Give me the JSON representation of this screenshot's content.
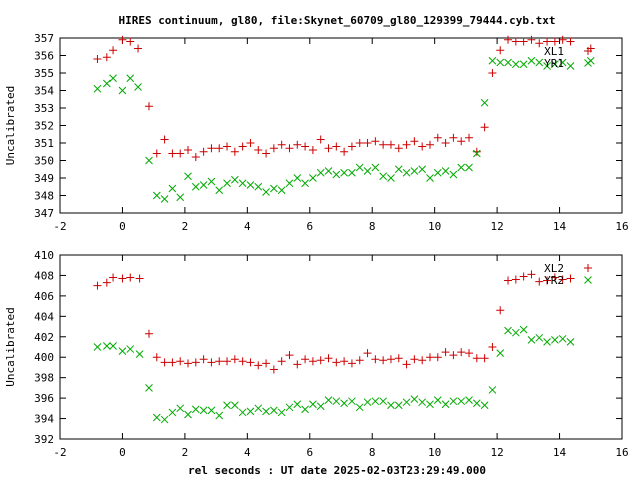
{
  "title": "HIRES continuum, gl80, file:Skynet_60709_gl80_129399_79444.cyb.txt",
  "xlabel": "rel seconds : UT date 2025-02-03T23:29:49.000",
  "colors": {
    "series_a": "#cc0000",
    "series_b": "#00aa00",
    "axes": "#000000"
  },
  "chart_data": [
    {
      "type": "scatter",
      "ylabel": "Uncalibrated",
      "xlim": [
        -2,
        16
      ],
      "ylim": [
        347,
        357
      ],
      "xticks": [
        -2,
        0,
        2,
        4,
        6,
        8,
        10,
        12,
        14,
        16
      ],
      "yticks": [
        347,
        348,
        349,
        350,
        351,
        352,
        353,
        354,
        355,
        356,
        357
      ],
      "legend_position": "top-right",
      "series": [
        {
          "name": "XL1",
          "marker": "plus",
          "x": [
            -0.8,
            -0.5,
            -0.3,
            0.0,
            0.25,
            0.5,
            0.85,
            1.1,
            1.35,
            1.6,
            1.85,
            2.1,
            2.35,
            2.6,
            2.85,
            3.1,
            3.35,
            3.6,
            3.85,
            4.1,
            4.35,
            4.6,
            4.85,
            5.1,
            5.35,
            5.6,
            5.85,
            6.1,
            6.35,
            6.6,
            6.85,
            7.1,
            7.35,
            7.6,
            7.85,
            8.1,
            8.35,
            8.6,
            8.85,
            9.1,
            9.35,
            9.6,
            9.85,
            10.1,
            10.35,
            10.6,
            10.85,
            11.1,
            11.35,
            11.6,
            11.85,
            12.1,
            12.35,
            12.6,
            12.85,
            13.1,
            13.35,
            13.6,
            13.85,
            14.1,
            14.35,
            15.0
          ],
          "y": [
            355.8,
            355.9,
            356.3,
            356.9,
            356.8,
            356.4,
            353.1,
            350.4,
            351.2,
            350.4,
            350.4,
            350.6,
            350.2,
            350.5,
            350.7,
            350.7,
            350.8,
            350.5,
            350.8,
            351.0,
            350.6,
            350.4,
            350.7,
            350.9,
            350.7,
            350.9,
            350.8,
            350.6,
            351.2,
            350.7,
            350.8,
            350.5,
            350.8,
            351.0,
            351.0,
            351.1,
            350.9,
            350.9,
            350.7,
            350.9,
            351.1,
            350.8,
            350.9,
            351.3,
            351.0,
            351.3,
            351.1,
            351.3,
            350.5,
            351.9,
            355.0,
            356.3,
            356.9,
            356.8,
            356.8,
            356.9,
            356.7,
            356.8,
            356.8,
            356.9,
            356.8,
            356.4
          ]
        },
        {
          "name": "YR1",
          "marker": "cross",
          "x": [
            -0.8,
            -0.5,
            -0.3,
            0.0,
            0.25,
            0.5,
            0.85,
            1.1,
            1.35,
            1.6,
            1.85,
            2.1,
            2.35,
            2.6,
            2.85,
            3.1,
            3.35,
            3.6,
            3.85,
            4.1,
            4.35,
            4.6,
            4.85,
            5.1,
            5.35,
            5.6,
            5.85,
            6.1,
            6.35,
            6.6,
            6.85,
            7.1,
            7.35,
            7.6,
            7.85,
            8.1,
            8.35,
            8.6,
            8.85,
            9.1,
            9.35,
            9.6,
            9.85,
            10.1,
            10.35,
            10.6,
            10.85,
            11.1,
            11.35,
            11.6,
            11.85,
            12.1,
            12.35,
            12.6,
            12.85,
            13.1,
            13.35,
            13.6,
            13.85,
            14.1,
            14.35,
            15.0
          ],
          "y": [
            354.1,
            354.4,
            354.7,
            354.0,
            354.7,
            354.2,
            350.0,
            348.0,
            347.8,
            348.4,
            347.9,
            349.1,
            348.5,
            348.6,
            348.8,
            348.3,
            348.7,
            348.9,
            348.7,
            348.6,
            348.5,
            348.2,
            348.4,
            348.3,
            348.7,
            349.0,
            348.7,
            349.0,
            349.3,
            349.4,
            349.2,
            349.3,
            349.3,
            349.6,
            349.4,
            349.6,
            349.1,
            349.0,
            349.5,
            349.3,
            349.4,
            349.5,
            349.0,
            349.3,
            349.4,
            349.2,
            349.6,
            349.6,
            350.4,
            353.3,
            355.7,
            355.6,
            355.6,
            355.5,
            355.5,
            355.7,
            355.6,
            355.4,
            355.5,
            355.6,
            355.4,
            355.7
          ]
        }
      ]
    },
    {
      "type": "scatter",
      "ylabel": "Uncalibrated",
      "xlim": [
        -2,
        16
      ],
      "ylim": [
        392,
        410
      ],
      "xticks": [
        -2,
        0,
        2,
        4,
        6,
        8,
        10,
        12,
        14,
        16
      ],
      "yticks": [
        392,
        394,
        396,
        398,
        400,
        402,
        404,
        406,
        408,
        410
      ],
      "legend_position": "top-right",
      "series": [
        {
          "name": "XL2",
          "marker": "plus",
          "x": [
            -0.8,
            -0.5,
            -0.3,
            0.0,
            0.25,
            0.55,
            0.85,
            1.1,
            1.35,
            1.6,
            1.85,
            2.1,
            2.35,
            2.6,
            2.85,
            3.1,
            3.35,
            3.6,
            3.85,
            4.1,
            4.35,
            4.6,
            4.85,
            5.1,
            5.35,
            5.6,
            5.85,
            6.1,
            6.35,
            6.6,
            6.85,
            7.1,
            7.35,
            7.6,
            7.85,
            8.1,
            8.35,
            8.6,
            8.85,
            9.1,
            9.35,
            9.6,
            9.85,
            10.1,
            10.35,
            10.6,
            10.85,
            11.1,
            11.35,
            11.6,
            11.85,
            12.1,
            12.35,
            12.6,
            12.85,
            13.1,
            13.35,
            13.6,
            13.85,
            14.1,
            14.35
          ],
          "y": [
            407.0,
            407.3,
            407.8,
            407.7,
            407.8,
            407.7,
            402.3,
            400.0,
            399.5,
            399.5,
            399.6,
            399.4,
            399.5,
            399.8,
            399.5,
            399.6,
            399.6,
            399.8,
            399.6,
            399.5,
            399.2,
            399.4,
            398.8,
            399.6,
            400.2,
            399.3,
            399.8,
            399.6,
            399.7,
            399.9,
            399.5,
            399.6,
            399.4,
            399.7,
            400.4,
            399.8,
            399.7,
            399.8,
            399.9,
            399.3,
            399.8,
            399.7,
            400.0,
            400.0,
            400.5,
            400.2,
            400.5,
            400.4,
            399.9,
            399.9,
            401.0,
            404.6,
            407.5,
            407.6,
            407.9,
            408.1,
            407.4,
            407.5,
            407.8,
            407.6,
            407.7
          ]
        },
        {
          "name": "YR2",
          "marker": "cross",
          "x": [
            -0.8,
            -0.5,
            -0.3,
            0.0,
            0.25,
            0.55,
            0.85,
            1.1,
            1.35,
            1.6,
            1.85,
            2.1,
            2.35,
            2.6,
            2.85,
            3.1,
            3.35,
            3.6,
            3.85,
            4.1,
            4.35,
            4.6,
            4.85,
            5.1,
            5.35,
            5.6,
            5.85,
            6.1,
            6.35,
            6.6,
            6.85,
            7.1,
            7.35,
            7.6,
            7.85,
            8.1,
            8.35,
            8.6,
            8.85,
            9.1,
            9.35,
            9.6,
            9.85,
            10.1,
            10.35,
            10.6,
            10.85,
            11.1,
            11.35,
            11.6,
            11.85,
            12.1,
            12.35,
            12.6,
            12.85,
            13.1,
            13.35,
            13.6,
            13.85,
            14.1,
            14.35
          ],
          "y": [
            401.0,
            401.1,
            401.1,
            400.6,
            400.8,
            400.3,
            397.0,
            394.1,
            393.9,
            394.6,
            395.0,
            394.4,
            394.9,
            394.8,
            394.8,
            394.3,
            395.3,
            395.3,
            394.6,
            394.7,
            395.0,
            394.7,
            394.8,
            394.6,
            395.1,
            395.4,
            394.9,
            395.4,
            395.2,
            395.8,
            395.7,
            395.5,
            395.7,
            395.1,
            395.6,
            395.7,
            395.7,
            395.3,
            395.3,
            395.6,
            395.9,
            395.6,
            395.4,
            395.8,
            395.4,
            395.7,
            395.7,
            395.8,
            395.5,
            395.3,
            396.8,
            400.4,
            402.6,
            402.4,
            402.7,
            401.7,
            401.9,
            401.5,
            401.7,
            401.8,
            401.5
          ]
        }
      ]
    }
  ]
}
